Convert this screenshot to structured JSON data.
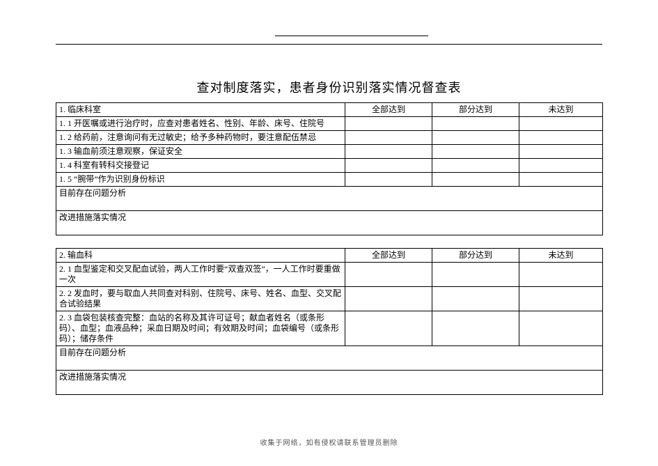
{
  "title": "查对制度落实，患者身份识别落实情况督查表",
  "columns": {
    "c2": "全部达到",
    "c3": "部分达到",
    "c4": "未达到"
  },
  "table1": {
    "header": "1. 临床科室",
    "rows": [
      "1. 1 开医嘱或进行治疗时，应查对患者姓名、性别、年龄、床号、住院号",
      "1. 2 给药前，注意询问有无过敏史；给予多种药物时，要注意配伍禁忌",
      "1. 3 输血前须注意观察，保证安全",
      "1. 4 科室有转科交接登记",
      "1. 5 “腕带”作为识别身份标识"
    ],
    "analysis": "目前存在问题分析",
    "improve": "改进措施落实情况"
  },
  "table2": {
    "header": "2. 输血科",
    "rows": [
      "2. 1 血型鉴定和交叉配血试验，两人工作时要“双查双签”，一人工作时要重做一次",
      "2. 2 发血时，要与取血人共同查对科别、住院号、床号、姓名、血型、交叉配合试验结果",
      "2. 3 血袋包装核查完整：血站的名称及其许可证号；献血者姓名（或条形码）、血型；血液品种；采血日期及时间；有效期及时间；血袋编号（或条形码）；储存条件"
    ],
    "analysis": "目前存在问题分析",
    "improve": "改进措施落实情况"
  },
  "footer": "收集于网络，如有侵权请联系管理员删除"
}
